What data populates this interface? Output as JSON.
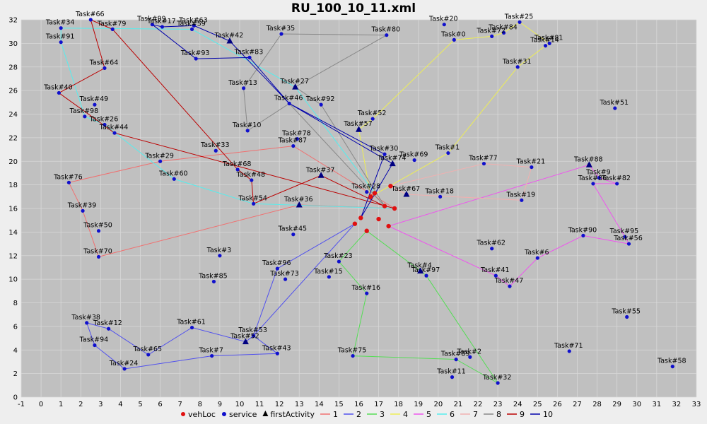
{
  "chart_data": {
    "type": "scatter",
    "title": "RU_100_10_11.xml",
    "xlim": [
      -1,
      33
    ],
    "ylim": [
      0,
      32
    ],
    "x_ticks": [
      -1,
      0,
      1,
      2,
      3,
      4,
      5,
      6,
      7,
      8,
      9,
      10,
      11,
      12,
      13,
      14,
      15,
      16,
      17,
      18,
      19,
      20,
      21,
      22,
      23,
      24,
      25,
      26,
      27,
      28,
      29,
      30,
      31,
      32,
      33
    ],
    "y_ticks": [
      0,
      2,
      4,
      6,
      8,
      10,
      12,
      14,
      16,
      18,
      20,
      22,
      24,
      26,
      28,
      30,
      32
    ],
    "grid": true,
    "legend_position": "bottom",
    "legend": [
      {
        "name": "vehLoc",
        "marker": "circle",
        "color": "#e01010"
      },
      {
        "name": "service",
        "marker": "circle",
        "color": "#1010cc"
      },
      {
        "name": "firstActivity",
        "marker": "triangle",
        "color": "#000000"
      },
      {
        "name": "1",
        "marker": "line",
        "color": "#f07070"
      },
      {
        "name": "2",
        "marker": "line",
        "color": "#5050ee"
      },
      {
        "name": "3",
        "marker": "line",
        "color": "#55dd55"
      },
      {
        "name": "4",
        "marker": "line",
        "color": "#eeee55"
      },
      {
        "name": "5",
        "marker": "line",
        "color": "#ee55ee"
      },
      {
        "name": "6",
        "marker": "line",
        "color": "#55eeee"
      },
      {
        "name": "7",
        "marker": "line",
        "color": "#f0b0b0"
      },
      {
        "name": "8",
        "marker": "line",
        "color": "#888888"
      },
      {
        "name": "9",
        "marker": "line",
        "color": "#bb0000"
      },
      {
        "name": "10",
        "marker": "line",
        "color": "#0000aa"
      }
    ],
    "tasks": [
      {
        "label": "Task#66",
        "x": 2.5,
        "y": 32.0
      },
      {
        "label": "Task#34",
        "x": 1.0,
        "y": 31.3
      },
      {
        "label": "Task#79",
        "x": 3.6,
        "y": 31.2
      },
      {
        "label": "Task#91",
        "x": 1.0,
        "y": 30.1
      },
      {
        "label": "Task#99",
        "x": 5.6,
        "y": 31.6
      },
      {
        "label": "Task#17",
        "x": 6.1,
        "y": 31.4
      },
      {
        "label": "Task#63",
        "x": 7.7,
        "y": 31.5
      },
      {
        "label": "Task#59",
        "x": 7.6,
        "y": 31.2
      },
      {
        "label": "Task#42",
        "x": 9.5,
        "y": 30.2
      },
      {
        "label": "Task#35",
        "x": 12.1,
        "y": 30.8
      },
      {
        "label": "Task#80",
        "x": 17.4,
        "y": 30.7
      },
      {
        "label": "Task#20",
        "x": 20.3,
        "y": 31.6
      },
      {
        "label": "Task#25",
        "x": 24.1,
        "y": 31.8
      },
      {
        "label": "Task#84",
        "x": 23.3,
        "y": 30.9
      },
      {
        "label": "Task#72",
        "x": 22.7,
        "y": 30.6
      },
      {
        "label": "Task#0",
        "x": 20.8,
        "y": 30.3
      },
      {
        "label": "Task#81",
        "x": 25.6,
        "y": 30.0
      },
      {
        "label": "Task#14",
        "x": 25.4,
        "y": 29.8
      },
      {
        "label": "Task#64",
        "x": 3.2,
        "y": 27.9
      },
      {
        "label": "Task#93",
        "x": 7.8,
        "y": 28.7
      },
      {
        "label": "Task#83",
        "x": 10.5,
        "y": 28.8
      },
      {
        "label": "Task#31",
        "x": 24.0,
        "y": 28.0
      },
      {
        "label": "Task#40",
        "x": 0.9,
        "y": 25.8
      },
      {
        "label": "Task#13",
        "x": 10.2,
        "y": 26.2
      },
      {
        "label": "Task#27",
        "x": 12.8,
        "y": 26.3
      },
      {
        "label": "Task#49",
        "x": 2.7,
        "y": 24.8
      },
      {
        "label": "Task#46",
        "x": 12.5,
        "y": 24.9
      },
      {
        "label": "Task#92",
        "x": 14.1,
        "y": 24.8
      },
      {
        "label": "Task#51",
        "x": 28.9,
        "y": 24.5
      },
      {
        "label": "Task#98",
        "x": 2.2,
        "y": 23.8
      },
      {
        "label": "Task#52",
        "x": 16.7,
        "y": 23.6
      },
      {
        "label": "Task#26",
        "x": 3.2,
        "y": 23.1
      },
      {
        "label": "Task#44",
        "x": 3.7,
        "y": 22.4
      },
      {
        "label": "Task#10",
        "x": 10.4,
        "y": 22.6
      },
      {
        "label": "Task#57",
        "x": 16.0,
        "y": 22.7
      },
      {
        "label": "Task#78",
        "x": 12.9,
        "y": 21.9
      },
      {
        "label": "Task#87",
        "x": 12.7,
        "y": 21.3
      },
      {
        "label": "Task#33",
        "x": 8.8,
        "y": 20.9
      },
      {
        "label": "Task#30",
        "x": 17.3,
        "y": 20.6
      },
      {
        "label": "Task#74",
        "x": 17.7,
        "y": 19.8
      },
      {
        "label": "Task#69",
        "x": 18.8,
        "y": 20.1
      },
      {
        "label": "Task#1",
        "x": 20.5,
        "y": 20.7
      },
      {
        "label": "Task#77",
        "x": 22.3,
        "y": 19.8
      },
      {
        "label": "Task#21",
        "x": 24.7,
        "y": 19.5
      },
      {
        "label": "Task#88",
        "x": 27.6,
        "y": 19.7
      },
      {
        "label": "Task#29",
        "x": 6.0,
        "y": 20.0
      },
      {
        "label": "Task#68",
        "x": 9.9,
        "y": 19.3
      },
      {
        "label": "Task#37",
        "x": 14.1,
        "y": 18.8
      },
      {
        "label": "Task#48",
        "x": 10.6,
        "y": 18.4
      },
      {
        "label": "Task#76",
        "x": 1.4,
        "y": 18.2
      },
      {
        "label": "Task#60",
        "x": 6.7,
        "y": 18.5
      },
      {
        "label": "Task#9",
        "x": 28.1,
        "y": 18.6
      },
      {
        "label": "Task#86",
        "x": 27.8,
        "y": 18.1
      },
      {
        "label": "Task#82",
        "x": 29.0,
        "y": 18.1
      },
      {
        "label": "Task#28",
        "x": 16.4,
        "y": 17.4
      },
      {
        "label": "Task#67",
        "x": 18.4,
        "y": 17.2
      },
      {
        "label": "Task#18",
        "x": 20.1,
        "y": 17.0
      },
      {
        "label": "Task#19",
        "x": 24.2,
        "y": 16.7
      },
      {
        "label": "Task#54",
        "x": 10.7,
        "y": 16.4
      },
      {
        "label": "Task#36",
        "x": 13.0,
        "y": 16.3
      },
      {
        "label": "Task#39",
        "x": 2.1,
        "y": 15.8
      },
      {
        "label": "Task#50",
        "x": 2.9,
        "y": 14.1
      },
      {
        "label": "Task#45",
        "x": 12.7,
        "y": 13.8
      },
      {
        "label": "Task#90",
        "x": 27.3,
        "y": 13.7
      },
      {
        "label": "Task#95",
        "x": 29.4,
        "y": 13.6
      },
      {
        "label": "Task#56",
        "x": 29.6,
        "y": 13.0
      },
      {
        "label": "Task#62",
        "x": 22.7,
        "y": 12.6
      },
      {
        "label": "Task#3",
        "x": 9.0,
        "y": 12.0
      },
      {
        "label": "Task#70",
        "x": 2.9,
        "y": 11.9
      },
      {
        "label": "Task#6",
        "x": 25.0,
        "y": 11.8
      },
      {
        "label": "Task#23",
        "x": 15.0,
        "y": 11.5
      },
      {
        "label": "Task#96",
        "x": 11.9,
        "y": 10.9
      },
      {
        "label": "Task#4",
        "x": 19.1,
        "y": 10.7
      },
      {
        "label": "Task#97",
        "x": 19.4,
        "y": 10.3
      },
      {
        "label": "Task#41",
        "x": 22.9,
        "y": 10.3
      },
      {
        "label": "Task#15",
        "x": 14.5,
        "y": 10.2
      },
      {
        "label": "Task#73",
        "x": 12.3,
        "y": 10.0
      },
      {
        "label": "Task#85",
        "x": 8.7,
        "y": 9.8
      },
      {
        "label": "Task#47",
        "x": 23.6,
        "y": 9.4
      },
      {
        "label": "Task#16",
        "x": 16.4,
        "y": 8.8
      },
      {
        "label": "Task#55",
        "x": 29.5,
        "y": 6.8
      },
      {
        "label": "Task#38",
        "x": 2.3,
        "y": 6.3
      },
      {
        "label": "Task#12",
        "x": 3.4,
        "y": 5.8
      },
      {
        "label": "Task#61",
        "x": 7.6,
        "y": 5.9
      },
      {
        "label": "Task#53",
        "x": 10.7,
        "y": 5.2
      },
      {
        "label": "Task#52",
        "x": 10.3,
        "y": 4.7
      },
      {
        "label": "Task#94",
        "x": 2.7,
        "y": 4.4
      },
      {
        "label": "Task#65",
        "x": 5.4,
        "y": 3.6
      },
      {
        "label": "Task#7",
        "x": 8.6,
        "y": 3.5
      },
      {
        "label": "Task#43",
        "x": 11.9,
        "y": 3.7
      },
      {
        "label": "Task#75",
        "x": 15.7,
        "y": 3.5
      },
      {
        "label": "Task#89",
        "x": 20.9,
        "y": 3.2
      },
      {
        "label": "Task#2",
        "x": 21.6,
        "y": 3.4
      },
      {
        "label": "Task#71",
        "x": 26.6,
        "y": 3.9
      },
      {
        "label": "Task#24",
        "x": 4.2,
        "y": 2.4
      },
      {
        "label": "Task#11",
        "x": 20.7,
        "y": 1.7
      },
      {
        "label": "Task#32",
        "x": 23.0,
        "y": 1.2
      },
      {
        "label": "Task#58",
        "x": 31.8,
        "y": 2.6
      }
    ],
    "first_activities": [
      [
        9.5,
        30.2
      ],
      [
        12.8,
        26.3
      ],
      [
        16.0,
        22.7
      ],
      [
        17.7,
        19.8
      ],
      [
        18.4,
        17.2
      ],
      [
        14.1,
        18.8
      ],
      [
        13.0,
        16.3
      ],
      [
        10.3,
        4.7
      ],
      [
        19.1,
        10.7
      ],
      [
        27.6,
        19.7
      ]
    ],
    "veh_locs": [
      [
        16.6,
        17.0
      ],
      [
        16.8,
        17.3
      ],
      [
        17.3,
        16.2
      ],
      [
        17.8,
        16.0
      ],
      [
        16.1,
        15.2
      ],
      [
        17.0,
        15.1
      ],
      [
        15.8,
        14.7
      ],
      [
        16.4,
        14.1
      ],
      [
        17.5,
        14.5
      ],
      [
        17.6,
        17.9
      ]
    ],
    "routes": [
      {
        "name": "1",
        "color": "#f07070",
        "points": [
          [
            17.8,
            16.0
          ],
          [
            13.0,
            16.3
          ],
          [
            2.9,
            11.9
          ],
          [
            2.1,
            15.8
          ],
          [
            1.4,
            18.2
          ],
          [
            6.0,
            20.0
          ],
          [
            12.7,
            21.3
          ],
          [
            17.8,
            16.0
          ]
        ]
      },
      {
        "name": "2",
        "color": "#5050ee",
        "points": [
          [
            15.8,
            14.7
          ],
          [
            11.9,
            10.9
          ],
          [
            10.7,
            5.2
          ],
          [
            10.3,
            4.7
          ],
          [
            7.6,
            5.9
          ],
          [
            5.4,
            3.6
          ],
          [
            3.4,
            5.8
          ],
          [
            2.3,
            6.3
          ],
          [
            2.7,
            4.4
          ],
          [
            4.2,
            2.4
          ],
          [
            8.6,
            3.5
          ],
          [
            11.9,
            3.7
          ],
          [
            10.7,
            5.2
          ],
          [
            15.8,
            14.7
          ]
        ]
      },
      {
        "name": "3",
        "color": "#55dd55",
        "points": [
          [
            16.4,
            14.1
          ],
          [
            15.0,
            11.5
          ],
          [
            16.4,
            8.8
          ],
          [
            15.7,
            3.5
          ],
          [
            20.9,
            3.2
          ],
          [
            23.0,
            1.2
          ],
          [
            19.4,
            10.3
          ],
          [
            19.1,
            10.7
          ],
          [
            16.4,
            14.1
          ]
        ]
      },
      {
        "name": "4",
        "color": "#eeee55",
        "points": [
          [
            16.6,
            17.0
          ],
          [
            16.0,
            22.7
          ],
          [
            16.7,
            23.6
          ],
          [
            20.8,
            30.3
          ],
          [
            22.7,
            30.6
          ],
          [
            23.3,
            30.9
          ],
          [
            24.1,
            31.8
          ],
          [
            25.6,
            30.0
          ],
          [
            25.4,
            29.8
          ],
          [
            24.0,
            28.0
          ],
          [
            20.5,
            20.7
          ],
          [
            16.6,
            17.0
          ]
        ]
      },
      {
        "name": "5",
        "color": "#ee55ee",
        "points": [
          [
            17.5,
            14.5
          ],
          [
            27.6,
            19.7
          ],
          [
            28.1,
            18.6
          ],
          [
            29.0,
            18.1
          ],
          [
            27.8,
            18.1
          ],
          [
            29.4,
            13.6
          ],
          [
            29.6,
            13.0
          ],
          [
            27.3,
            13.7
          ],
          [
            25.0,
            11.8
          ],
          [
            23.6,
            9.4
          ],
          [
            22.9,
            10.3
          ],
          [
            17.5,
            14.5
          ]
        ]
      },
      {
        "name": "6",
        "color": "#55eeee",
        "points": [
          [
            16.8,
            17.3
          ],
          [
            12.8,
            26.3
          ],
          [
            7.6,
            31.2
          ],
          [
            1.0,
            31.3
          ],
          [
            1.0,
            30.1
          ],
          [
            2.2,
            23.8
          ],
          [
            3.2,
            23.1
          ],
          [
            6.7,
            18.5
          ],
          [
            10.7,
            16.4
          ],
          [
            17.8,
            16.0
          ]
        ]
      },
      {
        "name": "7",
        "color": "#f0b0b0",
        "points": [
          [
            17.6,
            17.9
          ],
          [
            22.3,
            19.8
          ],
          [
            24.7,
            19.5
          ],
          [
            24.2,
            16.7
          ],
          [
            18.4,
            17.2
          ],
          [
            17.6,
            17.9
          ]
        ]
      },
      {
        "name": "8",
        "color": "#888888",
        "points": [
          [
            17.3,
            16.2
          ],
          [
            12.5,
            24.9
          ],
          [
            10.4,
            22.6
          ],
          [
            10.2,
            26.2
          ],
          [
            12.1,
            30.8
          ],
          [
            17.4,
            30.7
          ],
          [
            12.8,
            26.3
          ],
          [
            14.1,
            24.8
          ],
          [
            17.3,
            16.2
          ]
        ]
      },
      {
        "name": "9",
        "color": "#bb0000",
        "points": [
          [
            17.8,
            16.0
          ],
          [
            3.7,
            22.4
          ],
          [
            0.9,
            25.8
          ],
          [
            3.2,
            27.9
          ],
          [
            2.5,
            32.0
          ],
          [
            3.6,
            31.2
          ],
          [
            9.9,
            19.3
          ],
          [
            10.6,
            18.4
          ],
          [
            10.7,
            16.4
          ],
          [
            14.1,
            18.8
          ],
          [
            17.3,
            16.2
          ]
        ]
      },
      {
        "name": "10",
        "color": "#0000aa",
        "points": [
          [
            16.1,
            15.2
          ],
          [
            17.7,
            19.8
          ],
          [
            12.5,
            24.9
          ],
          [
            10.5,
            28.8
          ],
          [
            7.8,
            28.7
          ],
          [
            5.6,
            31.6
          ],
          [
            6.1,
            31.4
          ],
          [
            7.7,
            31.5
          ],
          [
            9.5,
            30.2
          ],
          [
            12.5,
            24.9
          ],
          [
            17.3,
            20.6
          ],
          [
            16.1,
            15.2
          ]
        ]
      }
    ]
  }
}
